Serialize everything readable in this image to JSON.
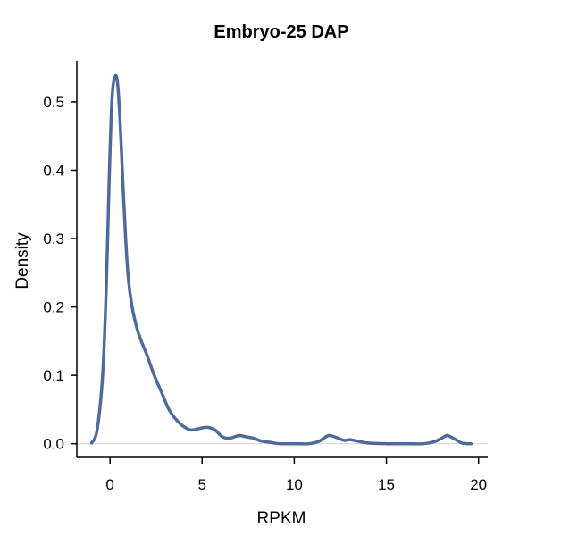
{
  "chart_data": {
    "type": "line",
    "title": "Embryo-25 DAP",
    "xlabel": "RPKM",
    "ylabel": "Density",
    "xlim": [
      -1.8,
      20.5
    ],
    "ylim": [
      -0.02,
      0.56
    ],
    "xticks": [
      0,
      5,
      10,
      15,
      20
    ],
    "yticks": [
      0.0,
      0.1,
      0.2,
      0.3,
      0.4,
      0.5
    ],
    "ytick_labels": [
      "0.0",
      "0.1",
      "0.2",
      "0.3",
      "0.4",
      "0.5"
    ],
    "grid": false,
    "zero_line": true,
    "line_color": "#4f6a9a",
    "zero_line_color": "#d3d3d3",
    "series": [
      {
        "x": [
          -1.0,
          -0.7,
          -0.4,
          -0.2,
          -0.05,
          0.1,
          0.25,
          0.4,
          0.55,
          0.7,
          0.85,
          1.0,
          1.2,
          1.45,
          1.7,
          2.0,
          2.4,
          2.8,
          3.2,
          3.6,
          4.0,
          4.4,
          4.8,
          5.3,
          5.7,
          6.1,
          6.5,
          7.0,
          7.4,
          7.8,
          8.2,
          8.7,
          9.2,
          10.0,
          10.8,
          11.3,
          11.6,
          11.9,
          12.3,
          12.7,
          13.0,
          13.4,
          14.0,
          15.0,
          16.0,
          17.0,
          17.6,
          18.0,
          18.3,
          18.7,
          19.1,
          19.6
        ],
        "y": [
          0.001,
          0.02,
          0.1,
          0.23,
          0.38,
          0.5,
          0.535,
          0.53,
          0.47,
          0.38,
          0.3,
          0.24,
          0.2,
          0.17,
          0.15,
          0.13,
          0.1,
          0.075,
          0.05,
          0.035,
          0.025,
          0.02,
          0.022,
          0.024,
          0.02,
          0.01,
          0.008,
          0.012,
          0.01,
          0.008,
          0.004,
          0.002,
          0.0,
          0.0,
          0.0,
          0.003,
          0.008,
          0.012,
          0.009,
          0.005,
          0.006,
          0.004,
          0.001,
          0.0,
          0.0,
          0.0,
          0.003,
          0.008,
          0.012,
          0.007,
          0.001,
          0.0
        ]
      }
    ]
  }
}
